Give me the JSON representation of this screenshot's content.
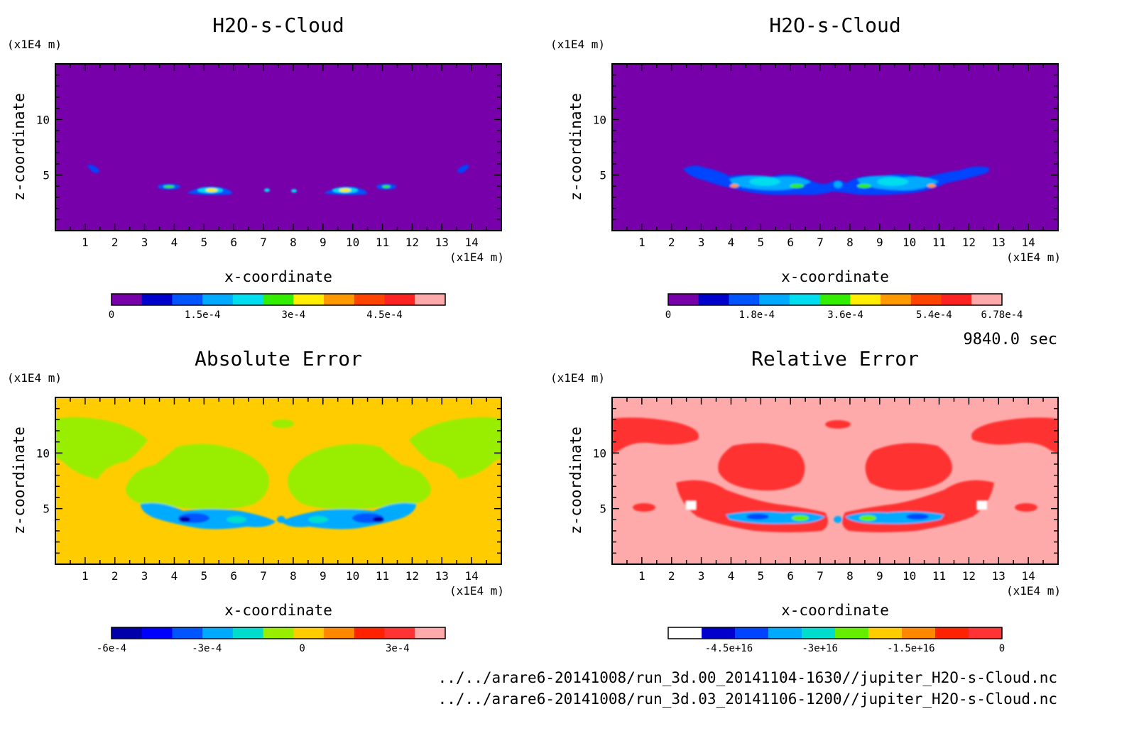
{
  "time_label": "9840.0 sec",
  "files": [
    "../../arare6-20141008/run_3d.00_20141104-1630//jupiter_H2O-s-Cloud.nc",
    "../../arare6-20141008/run_3d.03_20141106-1200//jupiter_H2O-s-Cloud.nc"
  ],
  "chart_data": [
    {
      "type": "heatmap",
      "title": "H2O-s-Cloud",
      "xlabel": "x-coordinate",
      "ylabel": "z-coordinate",
      "x_unit": "(x1E4 m)",
      "y_unit": "(x1E4 m)",
      "xlim": [
        0,
        15
      ],
      "ylim": [
        0,
        15
      ],
      "x_ticks": [
        "1",
        "2",
        "3",
        "4",
        "5",
        "6",
        "7",
        "8",
        "9",
        "10",
        "11",
        "12",
        "13",
        "14"
      ],
      "y_ticks": [
        "5",
        "10"
      ],
      "background": "#7700aa",
      "colorbar": {
        "colors": [
          "#7700aa",
          "#0000cc",
          "#0055ff",
          "#00aaff",
          "#00ddee",
          "#33ee00",
          "#ffee00",
          "#ff9900",
          "#ff4400",
          "#ff2222",
          "#ffaaaa"
        ],
        "tick_labels": [
          "0",
          "1.5e-4",
          "3e-4",
          "4.5e-4"
        ],
        "tick_values": [
          0,
          0.00015,
          0.0003,
          0.00045
        ],
        "range": [
          0,
          0.00055
        ]
      }
    },
    {
      "type": "heatmap",
      "title": "H2O-s-Cloud",
      "xlabel": "x-coordinate",
      "ylabel": "z-coordinate",
      "x_unit": "(x1E4 m)",
      "y_unit": "(x1E4 m)",
      "xlim": [
        0,
        15
      ],
      "ylim": [
        0,
        15
      ],
      "x_ticks": [
        "1",
        "2",
        "3",
        "4",
        "5",
        "6",
        "7",
        "8",
        "9",
        "10",
        "11",
        "12",
        "13",
        "14"
      ],
      "y_ticks": [
        "5",
        "10"
      ],
      "background": "#7700aa",
      "colorbar": {
        "colors": [
          "#7700aa",
          "#0000cc",
          "#0055ff",
          "#00aaff",
          "#00ddee",
          "#33ee00",
          "#ffee00",
          "#ff9900",
          "#ff4400",
          "#ff2222",
          "#ffaaaa"
        ],
        "tick_labels": [
          "0",
          "1.8e-4",
          "3.6e-4",
          "5.4e-4",
          "6.78e-4"
        ],
        "tick_values": [
          0,
          0.00018,
          0.00036,
          0.00054,
          0.000678
        ],
        "range": [
          0,
          0.000678
        ]
      }
    },
    {
      "type": "heatmap",
      "title": "Absolute Error",
      "xlabel": "x-coordinate",
      "ylabel": "z-coordinate",
      "x_unit": "(x1E4 m)",
      "y_unit": "(x1E4 m)",
      "xlim": [
        0,
        15
      ],
      "ylim": [
        0,
        15
      ],
      "x_ticks": [
        "1",
        "2",
        "3",
        "4",
        "5",
        "6",
        "7",
        "8",
        "9",
        "10",
        "11",
        "12",
        "13",
        "14"
      ],
      "y_ticks": [
        "5",
        "10"
      ],
      "background": "#ffcc00",
      "colorbar": {
        "colors": [
          "#0000aa",
          "#0000ff",
          "#0055ff",
          "#00aaff",
          "#00ddcc",
          "#99ee00",
          "#ffcc00",
          "#ff8800",
          "#ff2200",
          "#ff3333",
          "#ffaaaa"
        ],
        "tick_labels": [
          "-6e-4",
          "-3e-4",
          "0",
          "3e-4"
        ],
        "tick_values": [
          -0.0006,
          -0.0003,
          0,
          0.0003
        ],
        "range": [
          -0.0006,
          0.00045
        ]
      }
    },
    {
      "type": "heatmap",
      "title": "Relative Error",
      "xlabel": "x-coordinate",
      "ylabel": "z-coordinate",
      "x_unit": "(x1E4 m)",
      "y_unit": "(x1E4 m)",
      "xlim": [
        0,
        15
      ],
      "ylim": [
        0,
        15
      ],
      "x_ticks": [
        "1",
        "2",
        "3",
        "4",
        "5",
        "6",
        "7",
        "8",
        "9",
        "10",
        "11",
        "12",
        "13",
        "14"
      ],
      "y_ticks": [
        "5",
        "10"
      ],
      "background": "#ffaaaa",
      "colorbar": {
        "colors": [
          "#ffffff",
          "#0000cc",
          "#0044ff",
          "#00aaff",
          "#00ddcc",
          "#66ee00",
          "#ffcc00",
          "#ff8800",
          "#ff2200",
          "#ff3333"
        ],
        "tick_labels": [
          "-4.5e+16",
          "-3e+16",
          "-1.5e+16",
          "0"
        ],
        "tick_values": [
          -4.5e+16,
          -3e+16,
          -1.5e+16,
          0
        ],
        "range": [
          -5.5e+16,
          0
        ]
      }
    }
  ]
}
